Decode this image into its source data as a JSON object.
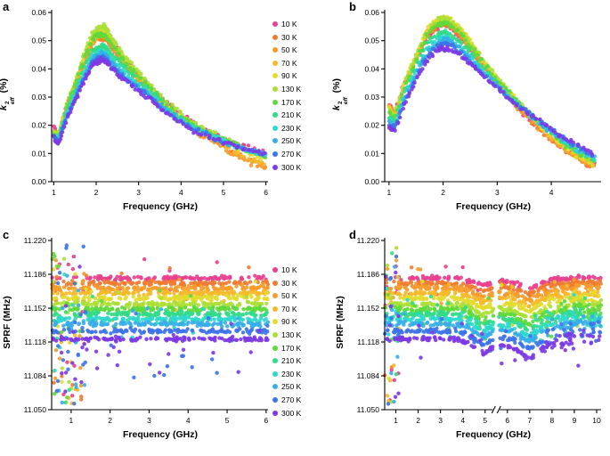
{
  "legend": {
    "items": [
      {
        "label": "10 K",
        "color": "#e8418f"
      },
      {
        "label": "30 K",
        "color": "#ef7c31"
      },
      {
        "label": "50 K",
        "color": "#f49c2c"
      },
      {
        "label": "70 K",
        "color": "#f6b92c"
      },
      {
        "label": "90 K",
        "color": "#e3db30"
      },
      {
        "label": "130 K",
        "color": "#abe036"
      },
      {
        "label": "170 K",
        "color": "#5fd93c"
      },
      {
        "label": "210 K",
        "color": "#33da88"
      },
      {
        "label": "230 K",
        "color": "#2fd8cc"
      },
      {
        "label": "250 K",
        "color": "#38aee8"
      },
      {
        "label": "270 K",
        "color": "#3e74e8"
      },
      {
        "label": "300 K",
        "color": "#7e3ae4"
      }
    ]
  },
  "chart_data": [
    {
      "id": "a",
      "panel_label": "a",
      "type": "scatter",
      "legend": true,
      "xlabel": "Frequency (GHz)",
      "ylabel": {
        "base": "k",
        "sup": "2",
        "sub": "eff",
        "unit": " (%)"
      },
      "xlim": [
        0.95,
        6.05
      ],
      "ylim": [
        0,
        0.06
      ],
      "xticks": [
        1,
        2,
        3,
        4,
        5,
        6
      ],
      "yticks": [
        "0.00",
        "0.01",
        "0.02",
        "0.03",
        "0.04",
        "0.05",
        "0.06"
      ],
      "seed": 7,
      "pps": 6,
      "jitter": 0.0012,
      "r": 2.2,
      "x": [
        1.0,
        1.1,
        1.3,
        1.5,
        1.7,
        1.9,
        2.0,
        2.1,
        2.2,
        2.3,
        2.5,
        2.7,
        3.0,
        3.3,
        3.6,
        4.0,
        4.4,
        4.8,
        5.2,
        5.6,
        6.0
      ],
      "series": [
        {
          "name": "10 K",
          "color": "#e8418f",
          "y": [
            0.019,
            0.016,
            0.027,
            0.034,
            0.043,
            0.05,
            0.052,
            0.053,
            0.053,
            0.051,
            0.047,
            0.043,
            0.038,
            0.033,
            0.029,
            0.024,
            0.02,
            0.017,
            0.014,
            0.012,
            0.01
          ]
        },
        {
          "name": "30 K",
          "color": "#ef7c31",
          "y": [
            0.018,
            0.015,
            0.026,
            0.033,
            0.042,
            0.049,
            0.051,
            0.051,
            0.051,
            0.049,
            0.045,
            0.041,
            0.036,
            0.031,
            0.027,
            0.022,
            0.018,
            0.015,
            0.011,
            0.008,
            0.006
          ]
        },
        {
          "name": "50 K",
          "color": "#f49c2c",
          "y": [
            0.018,
            0.015,
            0.026,
            0.033,
            0.042,
            0.049,
            0.051,
            0.052,
            0.052,
            0.05,
            0.045,
            0.041,
            0.036,
            0.031,
            0.026,
            0.021,
            0.017,
            0.014,
            0.01,
            0.007,
            0.005
          ]
        },
        {
          "name": "70 K",
          "color": "#f6b92c",
          "y": [
            0.018,
            0.015,
            0.026,
            0.034,
            0.043,
            0.05,
            0.052,
            0.053,
            0.053,
            0.051,
            0.046,
            0.042,
            0.037,
            0.032,
            0.027,
            0.022,
            0.018,
            0.015,
            0.011,
            0.008,
            0.006
          ]
        },
        {
          "name": "90 K",
          "color": "#e3db30",
          "y": [
            0.018,
            0.016,
            0.027,
            0.035,
            0.044,
            0.051,
            0.053,
            0.054,
            0.054,
            0.052,
            0.047,
            0.043,
            0.038,
            0.033,
            0.028,
            0.023,
            0.019,
            0.016,
            0.013,
            0.01,
            0.008
          ]
        },
        {
          "name": "130 K",
          "color": "#abe036",
          "y": [
            0.018,
            0.016,
            0.027,
            0.035,
            0.045,
            0.052,
            0.054,
            0.055,
            0.055,
            0.053,
            0.048,
            0.044,
            0.039,
            0.034,
            0.029,
            0.024,
            0.02,
            0.017,
            0.014,
            0.011,
            0.009
          ]
        },
        {
          "name": "170 K",
          "color": "#5fd93c",
          "y": [
            0.017,
            0.015,
            0.026,
            0.034,
            0.043,
            0.05,
            0.052,
            0.052,
            0.052,
            0.05,
            0.046,
            0.042,
            0.037,
            0.033,
            0.028,
            0.023,
            0.019,
            0.016,
            0.014,
            0.011,
            0.009
          ]
        },
        {
          "name": "210 K",
          "color": "#33da88",
          "y": [
            0.017,
            0.015,
            0.025,
            0.032,
            0.04,
            0.046,
            0.047,
            0.048,
            0.048,
            0.046,
            0.043,
            0.04,
            0.035,
            0.032,
            0.027,
            0.022,
            0.019,
            0.016,
            0.013,
            0.011,
            0.009
          ]
        },
        {
          "name": "230 K",
          "color": "#2fd8cc",
          "y": [
            0.016,
            0.014,
            0.024,
            0.031,
            0.038,
            0.044,
            0.045,
            0.046,
            0.046,
            0.044,
            0.041,
            0.038,
            0.034,
            0.031,
            0.026,
            0.022,
            0.018,
            0.016,
            0.013,
            0.011,
            0.01
          ]
        },
        {
          "name": "250 K",
          "color": "#38aee8",
          "y": [
            0.016,
            0.014,
            0.023,
            0.03,
            0.037,
            0.043,
            0.044,
            0.045,
            0.045,
            0.043,
            0.04,
            0.037,
            0.033,
            0.03,
            0.026,
            0.021,
            0.018,
            0.015,
            0.013,
            0.011,
            0.01
          ]
        },
        {
          "name": "270 K",
          "color": "#3e74e8",
          "y": [
            0.016,
            0.014,
            0.023,
            0.029,
            0.036,
            0.042,
            0.043,
            0.044,
            0.044,
            0.042,
            0.039,
            0.036,
            0.033,
            0.03,
            0.025,
            0.021,
            0.018,
            0.015,
            0.013,
            0.011,
            0.01
          ]
        },
        {
          "name": "300 K",
          "color": "#7e3ae4",
          "y": [
            0.016,
            0.013,
            0.022,
            0.029,
            0.035,
            0.041,
            0.042,
            0.043,
            0.043,
            0.041,
            0.038,
            0.036,
            0.032,
            0.029,
            0.025,
            0.021,
            0.017,
            0.015,
            0.013,
            0.011,
            0.01
          ]
        }
      ]
    },
    {
      "id": "b",
      "panel_label": "b",
      "type": "scatter",
      "legend": false,
      "xlabel": "Frequency (GHz)",
      "ylabel": {
        "base": "k",
        "sup": "2",
        "sub": "eff",
        "unit": " (%)"
      },
      "xlim": [
        0.92,
        4.92
      ],
      "ylim": [
        0,
        0.06
      ],
      "xticks": [
        1,
        2,
        3,
        4
      ],
      "yticks": [
        "0.00",
        "0.01",
        "0.02",
        "0.03",
        "0.04",
        "0.05",
        "0.06"
      ],
      "seed": 11,
      "pps": 6,
      "jitter": 0.0012,
      "r": 2.2,
      "x": [
        1.0,
        1.1,
        1.3,
        1.5,
        1.7,
        1.9,
        2.0,
        2.1,
        2.3,
        2.5,
        2.7,
        3.0,
        3.3,
        3.6,
        3.9,
        4.2,
        4.5,
        4.8
      ],
      "series": [
        {
          "name": "10 K",
          "color": "#e8418f",
          "y": [
            0.028,
            0.024,
            0.036,
            0.044,
            0.051,
            0.055,
            0.056,
            0.055,
            0.052,
            0.047,
            0.042,
            0.035,
            0.028,
            0.022,
            0.017,
            0.012,
            0.009,
            0.006
          ]
        },
        {
          "name": "30 K",
          "color": "#ef7c31",
          "y": [
            0.027,
            0.024,
            0.035,
            0.043,
            0.051,
            0.055,
            0.056,
            0.055,
            0.052,
            0.047,
            0.041,
            0.034,
            0.028,
            0.022,
            0.016,
            0.012,
            0.008,
            0.005
          ]
        },
        {
          "name": "50 K",
          "color": "#f49c2c",
          "y": [
            0.027,
            0.024,
            0.035,
            0.044,
            0.052,
            0.056,
            0.057,
            0.056,
            0.053,
            0.048,
            0.042,
            0.035,
            0.028,
            0.022,
            0.017,
            0.012,
            0.008,
            0.005
          ]
        },
        {
          "name": "70 K",
          "color": "#f6b92c",
          "y": [
            0.026,
            0.023,
            0.035,
            0.044,
            0.053,
            0.057,
            0.058,
            0.057,
            0.054,
            0.049,
            0.043,
            0.036,
            0.029,
            0.023,
            0.017,
            0.013,
            0.009,
            0.006
          ]
        },
        {
          "name": "90 K",
          "color": "#e3db30",
          "y": [
            0.026,
            0.023,
            0.036,
            0.045,
            0.054,
            0.058,
            0.058,
            0.058,
            0.055,
            0.05,
            0.044,
            0.037,
            0.03,
            0.024,
            0.018,
            0.013,
            0.009,
            0.006
          ]
        },
        {
          "name": "130 K",
          "color": "#abe036",
          "y": [
            0.025,
            0.023,
            0.035,
            0.045,
            0.053,
            0.057,
            0.058,
            0.057,
            0.054,
            0.049,
            0.044,
            0.037,
            0.03,
            0.024,
            0.019,
            0.014,
            0.01,
            0.007
          ]
        },
        {
          "name": "170 K",
          "color": "#5fd93c",
          "y": [
            0.024,
            0.022,
            0.034,
            0.043,
            0.052,
            0.056,
            0.056,
            0.056,
            0.053,
            0.048,
            0.043,
            0.036,
            0.03,
            0.024,
            0.019,
            0.014,
            0.01,
            0.007
          ]
        },
        {
          "name": "210 K",
          "color": "#33da88",
          "y": [
            0.023,
            0.021,
            0.032,
            0.041,
            0.049,
            0.052,
            0.053,
            0.052,
            0.05,
            0.046,
            0.041,
            0.035,
            0.029,
            0.024,
            0.019,
            0.014,
            0.011,
            0.008
          ]
        },
        {
          "name": "230 K",
          "color": "#2fd8cc",
          "y": [
            0.022,
            0.02,
            0.031,
            0.039,
            0.047,
            0.051,
            0.051,
            0.051,
            0.048,
            0.044,
            0.04,
            0.034,
            0.029,
            0.024,
            0.019,
            0.015,
            0.011,
            0.008
          ]
        },
        {
          "name": "250 K",
          "color": "#38aee8",
          "y": [
            0.021,
            0.019,
            0.03,
            0.038,
            0.046,
            0.049,
            0.05,
            0.05,
            0.047,
            0.043,
            0.039,
            0.034,
            0.028,
            0.024,
            0.019,
            0.015,
            0.012,
            0.009
          ]
        },
        {
          "name": "270 K",
          "color": "#3e74e8",
          "y": [
            0.02,
            0.019,
            0.029,
            0.037,
            0.045,
            0.048,
            0.049,
            0.049,
            0.046,
            0.043,
            0.039,
            0.033,
            0.028,
            0.024,
            0.02,
            0.016,
            0.012,
            0.009
          ]
        },
        {
          "name": "300 K",
          "color": "#7e3ae4",
          "y": [
            0.019,
            0.018,
            0.028,
            0.036,
            0.043,
            0.047,
            0.047,
            0.047,
            0.045,
            0.042,
            0.038,
            0.033,
            0.028,
            0.024,
            0.02,
            0.016,
            0.013,
            0.01
          ]
        }
      ]
    },
    {
      "id": "c",
      "panel_label": "c",
      "type": "bands",
      "legend": true,
      "xlabel": "Frequency (GHz)",
      "ylabel": {
        "text": "SPRF (MHz)"
      },
      "xlim": [
        0.5,
        6.05
      ],
      "ylim": [
        11.05,
        11.22
      ],
      "xticks": [
        1,
        2,
        3,
        4,
        5,
        6
      ],
      "yticks": [
        "11.050",
        "11.084",
        "11.118",
        "11.152",
        "11.186",
        "11.220"
      ],
      "seed": 21,
      "n": 150,
      "r": 2.2,
      "spread": 0.0032,
      "wide_below": 1.35,
      "out_frac": 0.07,
      "out_spread": 0.02,
      "bottom_extra": 12,
      "profile": {
        "x": [
          0.5,
          6.05
        ],
        "off": [
          0,
          0
        ]
      },
      "profile_scale": 0,
      "series": [
        {
          "name": "10 K",
          "color": "#e8418f",
          "center": 11.182
        },
        {
          "name": "30 K",
          "color": "#ef7c31",
          "center": 11.177
        },
        {
          "name": "50 K",
          "color": "#f49c2c",
          "center": 11.172
        },
        {
          "name": "70 K",
          "color": "#f6b92c",
          "center": 11.167
        },
        {
          "name": "90 K",
          "color": "#e3db30",
          "center": 11.162
        },
        {
          "name": "130 K",
          "color": "#abe036",
          "center": 11.156
        },
        {
          "name": "170 K",
          "color": "#5fd93c",
          "center": 11.151
        },
        {
          "name": "210 K",
          "color": "#33da88",
          "center": 11.146
        },
        {
          "name": "230 K",
          "color": "#2fd8cc",
          "center": 11.141
        },
        {
          "name": "250 K",
          "color": "#38aee8",
          "center": 11.136
        },
        {
          "name": "270 K",
          "color": "#3e74e8",
          "center": 11.129
        },
        {
          "name": "300 K",
          "color": "#7e3ae4",
          "center": 11.121
        }
      ]
    },
    {
      "id": "d",
      "panel_label": "d",
      "type": "bands",
      "legend": false,
      "xlabel": "Frequency (GHz)",
      "ylabel": {
        "text": "SPRF (MHz)"
      },
      "xlim": [
        0.5,
        10.2
      ],
      "ylim": [
        11.05,
        11.22
      ],
      "xticks": [
        1,
        2,
        3,
        4,
        5,
        6,
        7,
        8,
        9,
        10
      ],
      "xbreak": 5.5,
      "gap": [
        5.38,
        5.62
      ],
      "yticks": [
        "11.050",
        "11.084",
        "11.118",
        "11.152",
        "11.186",
        "11.220"
      ],
      "seed": 33,
      "n": 175,
      "r": 2.2,
      "spread": 0.0032,
      "wide_below": 1.15,
      "out_frac": 0.07,
      "out_spread": 0.02,
      "tail_from": 7.6,
      "tail_spread": 0.012,
      "profile": {
        "x": [
          0.5,
          3.8,
          4.4,
          4.9,
          5.38,
          5.62,
          6.2,
          6.6,
          7.0,
          7.4,
          8.0,
          8.8,
          10.2
        ],
        "off": [
          0,
          0,
          -0.003,
          -0.0075,
          -0.004,
          -0.003,
          -0.004,
          -0.007,
          -0.01,
          -0.006,
          -0.002,
          0,
          0
        ]
      },
      "profile_scale": 0.09,
      "series": [
        {
          "name": "10 K",
          "color": "#e8418f",
          "center": 11.182
        },
        {
          "name": "30 K",
          "color": "#ef7c31",
          "center": 11.177
        },
        {
          "name": "50 K",
          "color": "#f49c2c",
          "center": 11.172
        },
        {
          "name": "70 K",
          "color": "#f6b92c",
          "center": 11.167
        },
        {
          "name": "90 K",
          "color": "#e3db30",
          "center": 11.162
        },
        {
          "name": "130 K",
          "color": "#abe036",
          "center": 11.156
        },
        {
          "name": "170 K",
          "color": "#5fd93c",
          "center": 11.151
        },
        {
          "name": "210 K",
          "color": "#33da88",
          "center": 11.146
        },
        {
          "name": "230 K",
          "color": "#2fd8cc",
          "center": 11.141
        },
        {
          "name": "250 K",
          "color": "#38aee8",
          "center": 11.136
        },
        {
          "name": "270 K",
          "color": "#3e74e8",
          "center": 11.129
        },
        {
          "name": "300 K",
          "color": "#7e3ae4",
          "center": 11.121
        }
      ]
    }
  ]
}
